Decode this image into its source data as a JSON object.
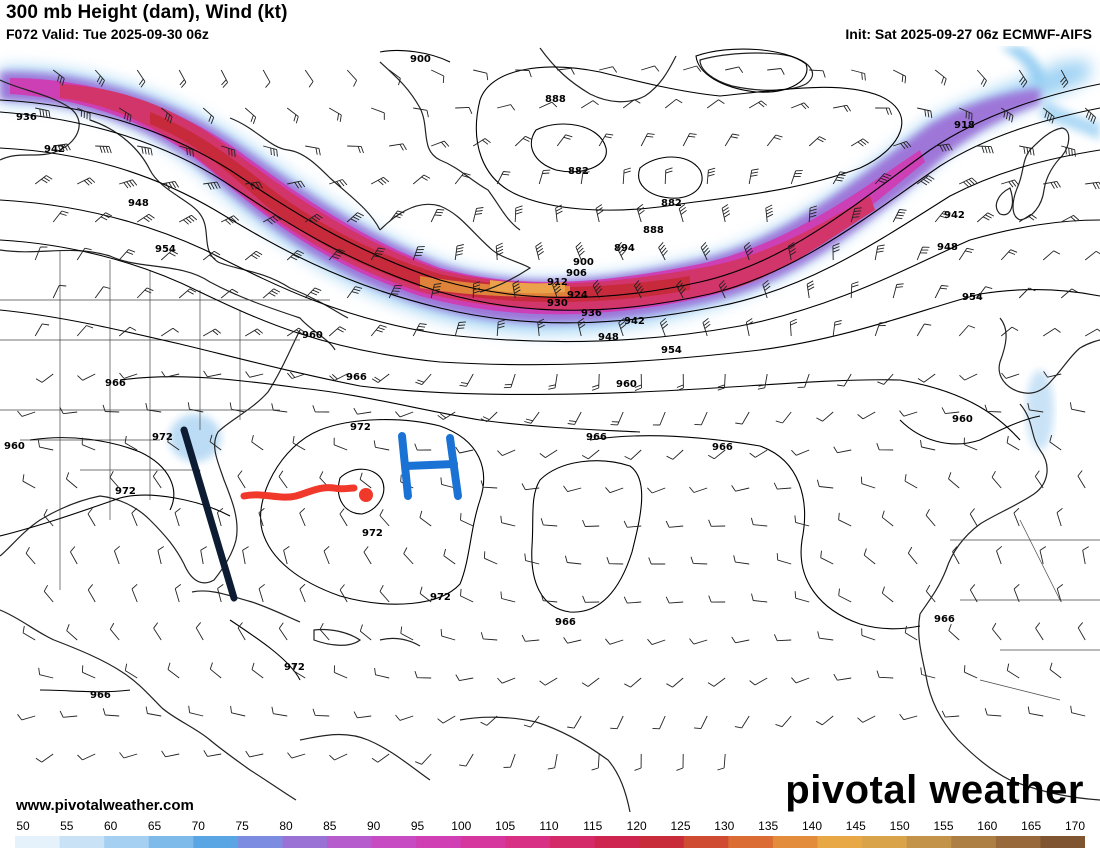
{
  "header": {
    "title": "300 mb Height (dam), Wind (kt)",
    "valid": "F072 Valid: Tue 2025-09-30 06z",
    "init": "Init: Sat 2025-09-27 06z ECMWF-AIFS"
  },
  "map": {
    "contour_labels": [
      "900",
      "888",
      "882",
      "882",
      "888",
      "894",
      "900",
      "906",
      "912",
      "918",
      "924",
      "930",
      "936",
      "942",
      "948",
      "954",
      "960",
      "966",
      "972",
      "936",
      "942",
      "948",
      "954",
      "960",
      "966",
      "960",
      "972",
      "972",
      "972",
      "972",
      "966",
      "966",
      "966",
      "966",
      "942",
      "948",
      "954",
      "960",
      "966",
      "972"
    ],
    "annotations": {
      "high_label": "H",
      "high_color": "#1a72d4",
      "track_color": "#f0392b",
      "trough_color": "#0d1b33"
    }
  },
  "footer": {
    "source": "www.pivotalweather.com",
    "logo": "pivotal weather"
  },
  "colorbar": {
    "ticks": [
      "50",
      "55",
      "60",
      "65",
      "70",
      "75",
      "80",
      "85",
      "90",
      "95",
      "100",
      "105",
      "110",
      "115",
      "120",
      "125",
      "130",
      "135",
      "140",
      "145",
      "150",
      "155",
      "160",
      "165",
      "170"
    ],
    "colors": [
      "#e6f2fb",
      "#c9e2f6",
      "#a6d0f1",
      "#7fbbea",
      "#5aa6e4",
      "#7c8ce0",
      "#9a72d6",
      "#b65ccc",
      "#c74bc2",
      "#d13fb4",
      "#d6379e",
      "#d83085",
      "#d52a6a",
      "#ce2550",
      "#c82b3a",
      "#cf4b32",
      "#db6d34",
      "#e38c3c",
      "#e8a846",
      "#d9a34a",
      "#c4934a",
      "#ae7f44",
      "#98693a",
      "#7f5430"
    ]
  }
}
